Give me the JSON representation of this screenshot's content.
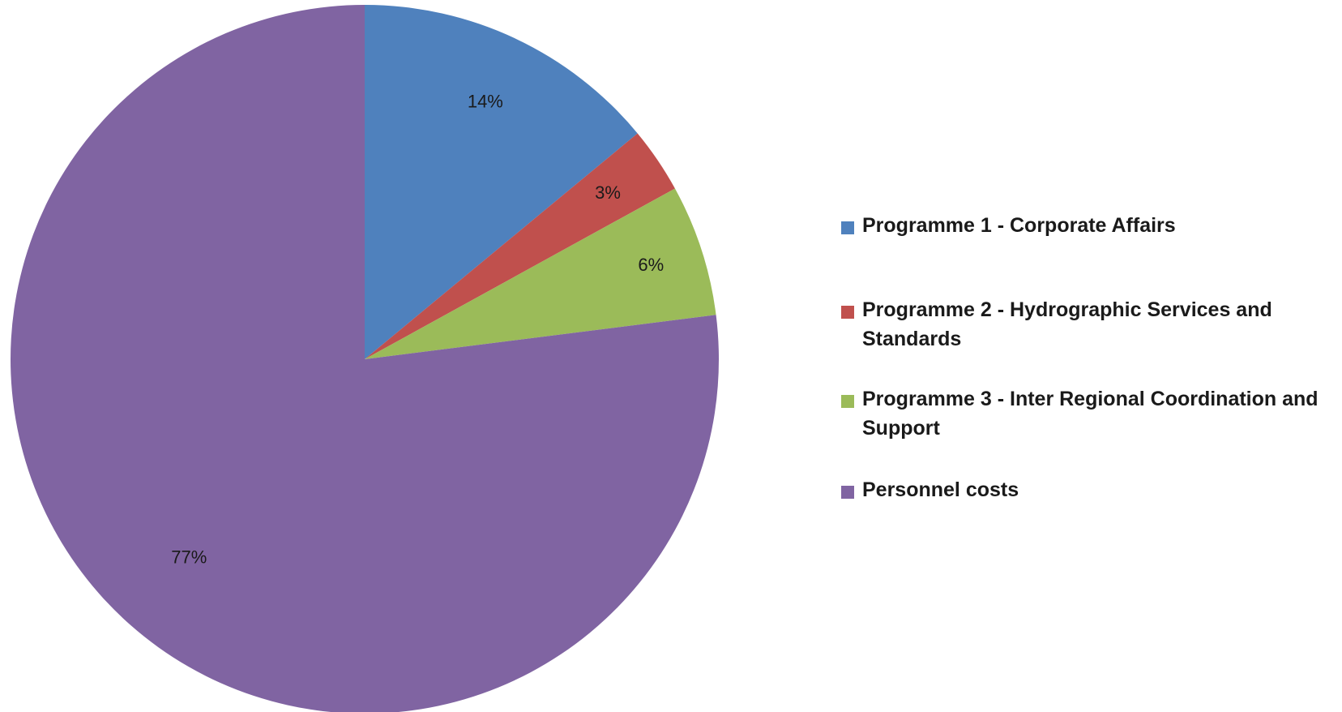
{
  "chart_data": {
    "type": "pie",
    "title": "",
    "start_angle_deg": 0,
    "direction": "clockwise",
    "legend_position": "right",
    "slices": [
      {
        "name": "Programme 1 - Corporate Affairs",
        "value": 14,
        "label": "14%",
        "color": "#4F81BD"
      },
      {
        "name": "Programme 2 - Hydrographic Services and Standards",
        "value": 3,
        "label": "3%",
        "color": "#C0504D"
      },
      {
        "name": "Programme 3 - Inter Regional Coordination and Support",
        "value": 6,
        "label": "6%",
        "color": "#9BBB59"
      },
      {
        "name": "Personnel costs",
        "value": 77,
        "label": "77%",
        "color": "#8064A2"
      }
    ]
  }
}
